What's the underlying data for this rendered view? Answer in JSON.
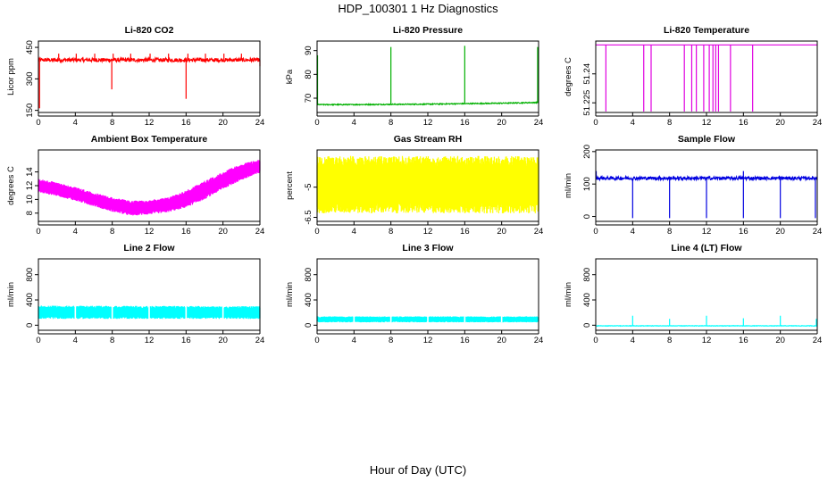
{
  "figure": {
    "title": "HDP_100301  1 Hz Diagnostics",
    "xlabel": "Hour of Day (UTC)"
  },
  "chart_data": [
    {
      "type": "line",
      "title": "Li-820 CO2",
      "ylabel": "Licor ppm",
      "color": "#ff0000",
      "xlim": [
        0,
        24
      ],
      "ylim": [
        140,
        480
      ],
      "xticks": [
        0,
        4,
        8,
        12,
        16,
        20,
        24
      ],
      "yticks": [
        150,
        300,
        450
      ],
      "x": [
        0,
        2,
        4,
        6,
        8,
        10,
        12,
        14,
        16,
        18,
        20,
        22,
        24
      ],
      "y": [
        390,
        390,
        390,
        390,
        390,
        390,
        390,
        390,
        390,
        390,
        390,
        390,
        390
      ],
      "baseline": 390,
      "noise": 9,
      "spikes": [
        {
          "x": 0.12,
          "y": 160
        },
        {
          "x": 2.2,
          "y": 420
        },
        {
          "x": 4.1,
          "y": 420
        },
        {
          "x": 6.1,
          "y": 420
        },
        {
          "x": 7.95,
          "y": 250
        },
        {
          "x": 8.1,
          "y": 420
        },
        {
          "x": 10.0,
          "y": 420
        },
        {
          "x": 12.1,
          "y": 420
        },
        {
          "x": 14.1,
          "y": 420
        },
        {
          "x": 16.0,
          "y": 205
        },
        {
          "x": 16.2,
          "y": 420
        },
        {
          "x": 18.1,
          "y": 420
        },
        {
          "x": 20.1,
          "y": 420
        },
        {
          "x": 22.0,
          "y": 420
        },
        {
          "x": 24.0,
          "y": 360
        }
      ]
    },
    {
      "type": "line",
      "title": "Li-820 Pressure",
      "ylabel": "kPa",
      "color": "#00b000",
      "xlim": [
        0,
        24
      ],
      "ylim": [
        64,
        94
      ],
      "xticks": [
        0,
        4,
        8,
        12,
        16,
        20,
        24
      ],
      "yticks": [
        70,
        80,
        90
      ],
      "x": [
        0,
        4,
        8,
        12,
        16,
        20,
        24
      ],
      "y": [
        67.3,
        67.3,
        67.4,
        67.5,
        67.7,
        67.9,
        68.2
      ],
      "baseline": 67.5,
      "noise": 0.2,
      "spikes": [
        {
          "x": 0.05,
          "y": 88
        },
        {
          "x": 8.0,
          "y": 91.5
        },
        {
          "x": 16.0,
          "y": 92
        },
        {
          "x": 23.9,
          "y": 91.5
        }
      ]
    },
    {
      "type": "line",
      "title": "Li-820 Temperature",
      "ylabel": "degrees C",
      "color": "#e000e0",
      "xlim": [
        0,
        24
      ],
      "ylim": [
        51.22,
        51.257
      ],
      "xticks": [
        0,
        4,
        8,
        12,
        16,
        20,
        24
      ],
      "yticks": [
        51.225,
        51.24
      ],
      "x": [
        0,
        24
      ],
      "y": [
        51.255,
        51.255
      ],
      "baseline": 51.255,
      "noise": 0,
      "spikes": [
        {
          "x": 1.1,
          "y": 51.2205
        },
        {
          "x": 5.2,
          "y": 51.2205
        },
        {
          "x": 6.0,
          "y": 51.2205
        },
        {
          "x": 9.6,
          "y": 51.2205
        },
        {
          "x": 10.4,
          "y": 51.2205
        },
        {
          "x": 10.9,
          "y": 51.2205
        },
        {
          "x": 11.7,
          "y": 51.2205
        },
        {
          "x": 12.3,
          "y": 51.2205
        },
        {
          "x": 12.7,
          "y": 51.2205
        },
        {
          "x": 13.0,
          "y": 51.2205
        },
        {
          "x": 13.3,
          "y": 51.2205
        },
        {
          "x": 14.6,
          "y": 51.2205
        },
        {
          "x": 17.0,
          "y": 51.2205
        }
      ]
    },
    {
      "type": "area",
      "title": "Ambient Box Temperature",
      "ylabel": "degrees C",
      "color": "#ff00ff",
      "xlim": [
        0,
        24
      ],
      "ylim": [
        6.8,
        17.2
      ],
      "xticks": [
        0,
        4,
        8,
        12,
        16,
        20,
        24
      ],
      "yticks": [
        8,
        10,
        12,
        14
      ],
      "x": [
        0,
        2,
        4,
        6,
        8,
        10,
        12,
        14,
        16,
        18,
        20,
        22,
        24
      ],
      "ymin": [
        11.0,
        10.5,
        9.8,
        9.0,
        8.2,
        7.6,
        7.8,
        8.1,
        8.8,
        10.0,
        11.5,
        12.8,
        13.8
      ],
      "ymax": [
        13.0,
        12.5,
        11.8,
        11.0,
        10.3,
        9.8,
        9.9,
        10.3,
        11.3,
        12.7,
        14.0,
        15.2,
        15.8
      ]
    },
    {
      "type": "area",
      "title": "Gas Stream RH",
      "ylabel": "percent",
      "color": "#ffff00",
      "xlim": [
        0,
        24
      ],
      "ylim": [
        -6.7,
        -3.15
      ],
      "xticks": [
        0,
        4,
        8,
        12,
        16,
        20,
        24
      ],
      "yticks": [
        -6.5,
        -5.0
      ],
      "x": [
        0,
        24
      ],
      "ymin": [
        -6.3,
        -6.3
      ],
      "ymax": [
        -3.45,
        -3.45
      ]
    },
    {
      "type": "line",
      "title": "Sample Flow",
      "ylabel": "ml/min",
      "color": "#0000e0",
      "xlim": [
        0,
        24
      ],
      "ylim": [
        -15,
        205
      ],
      "xticks": [
        0,
        4,
        8,
        12,
        16,
        20,
        24
      ],
      "yticks": [
        0,
        100,
        200
      ],
      "x": [
        0,
        24
      ],
      "y": [
        118,
        118
      ],
      "baseline": 118,
      "noise": 5,
      "spikes": [
        {
          "x": 0.05,
          "y": 140
        },
        {
          "x": 4.0,
          "y": -5
        },
        {
          "x": 8.0,
          "y": -5
        },
        {
          "x": 12.0,
          "y": -5
        },
        {
          "x": 16.0,
          "y": -5
        },
        {
          "x": 16.0,
          "y": 140
        },
        {
          "x": 20.0,
          "y": -5
        },
        {
          "x": 23.8,
          "y": -5
        }
      ]
    },
    {
      "type": "area",
      "title": "Line 2 Flow",
      "ylabel": "ml/min",
      "color": "#00ffff",
      "xlim": [
        0,
        24
      ],
      "ylim": [
        -80,
        1050
      ],
      "xticks": [
        0,
        4,
        8,
        12,
        16,
        20,
        24
      ],
      "yticks": [
        0,
        400,
        800
      ],
      "x": [
        0,
        24
      ],
      "ymin": [
        100,
        100
      ],
      "ymax": [
        310,
        300
      ],
      "gaps": [
        4,
        8,
        12,
        16,
        20
      ]
    },
    {
      "type": "area",
      "title": "Line 3 Flow",
      "ylabel": "ml/min",
      "color": "#00ffff",
      "xlim": [
        0,
        24
      ],
      "ylim": [
        -80,
        1050
      ],
      "xticks": [
        0,
        4,
        8,
        12,
        16,
        20,
        24
      ],
      "yticks": [
        0,
        400,
        800
      ],
      "x": [
        0,
        24
      ],
      "ymin": [
        45,
        45
      ],
      "ymax": [
        140,
        140
      ],
      "gaps": [
        4,
        8,
        12,
        16,
        20
      ]
    },
    {
      "type": "line",
      "title": "Line 4 (LT) Flow",
      "ylabel": "ml/min",
      "color": "#00ffff",
      "xlim": [
        0,
        24
      ],
      "ylim": [
        -80,
        1050
      ],
      "xticks": [
        0,
        4,
        8,
        12,
        16,
        20,
        24
      ],
      "yticks": [
        0,
        400,
        800
      ],
      "x": [
        0,
        24
      ],
      "y": [
        -10,
        -10
      ],
      "baseline": -10,
      "noise": 4,
      "spikes": [
        {
          "x": 4.0,
          "y": 150
        },
        {
          "x": 8.0,
          "y": 100
        },
        {
          "x": 12.0,
          "y": 150
        },
        {
          "x": 16.0,
          "y": 110
        },
        {
          "x": 20.0,
          "y": 150
        },
        {
          "x": 23.9,
          "y": 100
        }
      ]
    }
  ]
}
